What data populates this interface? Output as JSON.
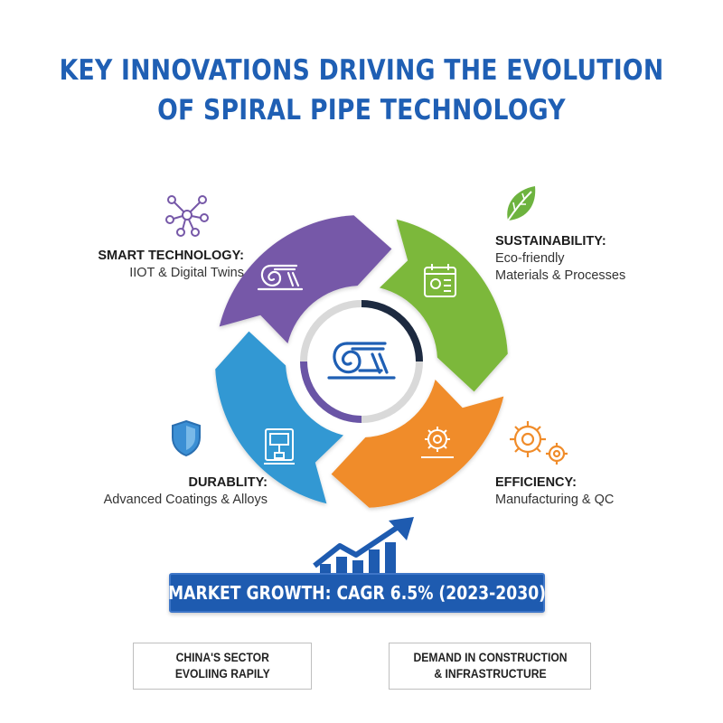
{
  "title": {
    "line1": "KEY INNOVATIONS DRIVING THE EVOLUTION",
    "line2": "OF SPIRAL PIPE TECHNOLOGY"
  },
  "cycle": {
    "segments": [
      {
        "key": "smart",
        "color": "#7658a8",
        "icon": "spiral-pipe-icon"
      },
      {
        "key": "sustainability",
        "color": "#7cb83b",
        "icon": "document-leaf-icon"
      },
      {
        "key": "efficiency",
        "color": "#f08c2a",
        "icon": "gear-icon"
      },
      {
        "key": "durability",
        "color": "#3298d3",
        "icon": "machine-icon"
      }
    ],
    "center_icon": "spiral-pipe-icon"
  },
  "labels": {
    "smart": {
      "head": "SMART TECHNOLOGY:",
      "sub": "IIOT & Digital Twins",
      "icon": "network-icon"
    },
    "sustainability": {
      "head": "SUSTAINABILITY:",
      "sub1": "Eco-friendly",
      "sub2": "Materials & Processes",
      "icon": "leaf-icon"
    },
    "durability": {
      "head": "DURABLITY:",
      "sub": "Advanced Coatings & Alloys",
      "icon": "shield-icon"
    },
    "efficiency": {
      "head": "EFFICIENCY:",
      "sub": "Manufacturing & QC",
      "icon": "gears-icon"
    }
  },
  "market": {
    "label": "MARKET GROWTH: CAGR 6.5% (2023-2030)",
    "icon": "growth-chart-icon"
  },
  "boxes": {
    "china": {
      "line1": "CHINA'S SECTOR",
      "line2": "EVOLIING RAPILY"
    },
    "demand": {
      "line1": "DEMAND IN CONSTRUCTION",
      "line2": "& INFRASTRUCTURE"
    }
  }
}
